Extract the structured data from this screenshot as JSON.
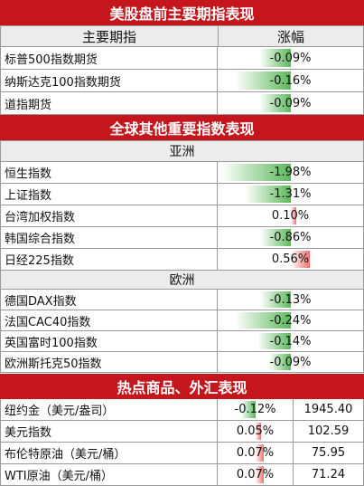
{
  "section1": {
    "title": "美股盘前主要期指表现",
    "col_name": "主要期指",
    "col_change": "涨幅",
    "rows": [
      {
        "name": "标普500指数期货",
        "change": "-0.09%",
        "pct": -0.09
      },
      {
        "name": "纳斯达克100指数期货",
        "change": "-0.16%",
        "pct": -0.16
      },
      {
        "name": "道指期货",
        "change": "-0.09%",
        "pct": -0.09
      }
    ]
  },
  "section2": {
    "title": "全球其他重要指数表现",
    "asia_label": "亚洲",
    "asia": [
      {
        "name": "恒生指数",
        "change": "-1.98%",
        "pct": -1.98
      },
      {
        "name": "上证指数",
        "change": "-1.31%",
        "pct": -1.31
      },
      {
        "name": "台湾加权指数",
        "change": "0.10%",
        "pct": 0.1
      },
      {
        "name": "韩国综合指数",
        "change": "-0.86%",
        "pct": -0.86
      },
      {
        "name": "日经225指数",
        "change": "0.56%",
        "pct": 0.56
      }
    ],
    "europe_label": "欧洲",
    "europe": [
      {
        "name": "德国DAX指数",
        "change": "-0.13%",
        "pct": -0.13
      },
      {
        "name": "法国CAC40指数",
        "change": "-0.24%",
        "pct": -0.24
      },
      {
        "name": "英国富时100指数",
        "change": "-0.14%",
        "pct": -0.14
      },
      {
        "name": "欧洲斯托克50指数",
        "change": "-0.09%",
        "pct": -0.09
      }
    ]
  },
  "section3": {
    "title": "热点商品、外汇表现",
    "rows": [
      {
        "name": "纽约金（美元/盎司）",
        "change": "-0.12%",
        "pct": -0.12,
        "price": "1945.40"
      },
      {
        "name": "美元指数",
        "change": "0.05%",
        "pct": 0.05,
        "price": "102.59"
      },
      {
        "name": "布伦特原油（美元/桶）",
        "change": "0.07%",
        "pct": 0.07,
        "price": "75.95"
      },
      {
        "name": "WTI原油（美元/桶）",
        "change": "0.07%",
        "pct": 0.07,
        "price": "71.24"
      }
    ]
  },
  "colors": {
    "banner": "#c4161c",
    "down": "#5cb85c",
    "up": "#f26d6d"
  }
}
